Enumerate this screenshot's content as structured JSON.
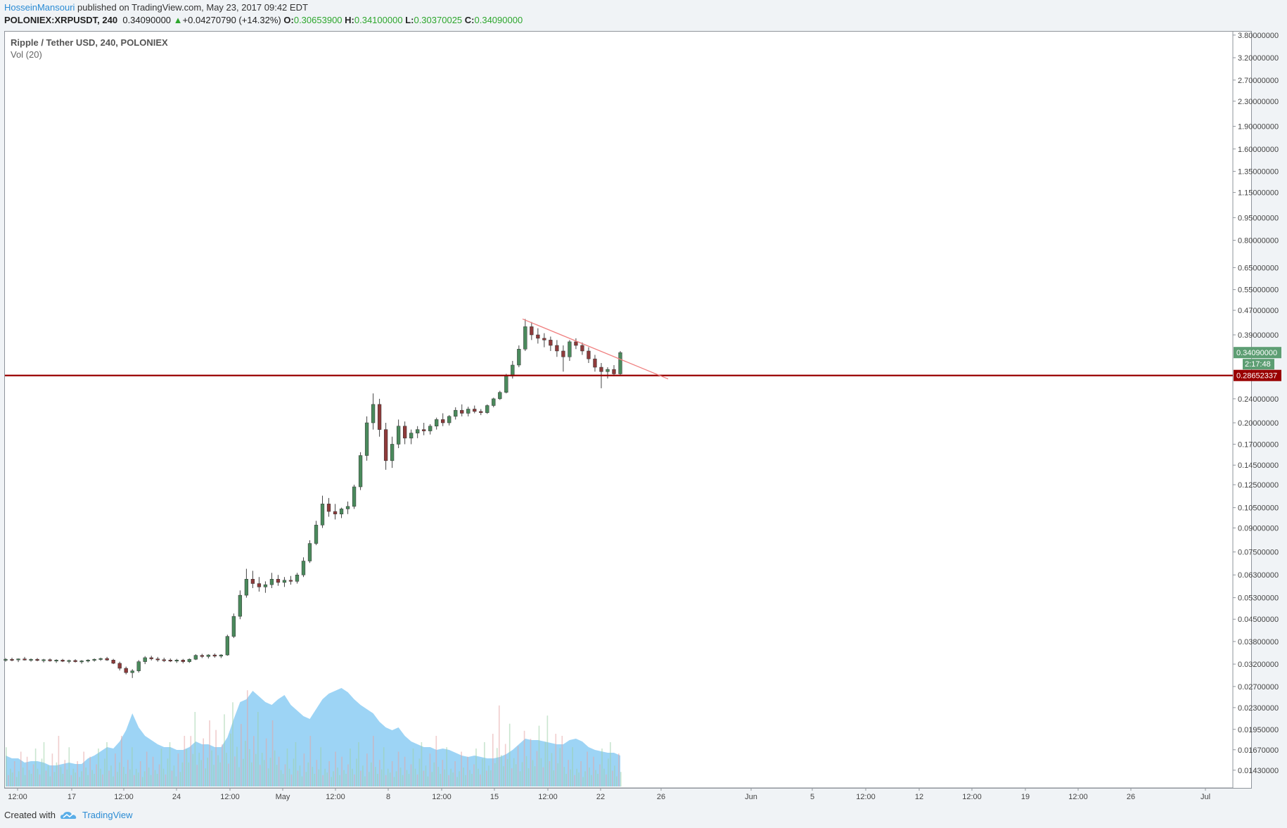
{
  "header": {
    "author": "HosseinMansouri",
    "published_text": " published on TradingView.com, May 23, 2017 09:42 EDT"
  },
  "symbol_bar": {
    "symbol": "POLONIEX:XRPUSDT, 240",
    "last": "0.34090000",
    "change": "+0.04270790 (+14.32%)",
    "o_label": "O:",
    "o": "0.30653900",
    "h_label": "H:",
    "h": "0.34100000",
    "l_label": "L:",
    "l": "0.30370025",
    "c_label": "C:",
    "c": "0.34090000"
  },
  "legend": {
    "title": "Ripple / Tether USD, 240, POLONIEX",
    "volume": "Vol (20)"
  },
  "footer": {
    "created_with": "Created with",
    "brand": "TradingView",
    "logo_icon": "tradingview-cloud-icon"
  },
  "chart_data": {
    "type": "candlestick",
    "y_scale": "log",
    "ylim": [
      0.0125,
      3.9
    ],
    "y_ticks": [
      "3.80000000",
      "3.20000000",
      "2.70000000",
      "2.30000000",
      "1.90000000",
      "1.60000000",
      "1.35000000",
      "1.15000000",
      "0.95000000",
      "0.80000000",
      "0.65000000",
      "0.55000000",
      "0.47000000",
      "0.39000000",
      "0.24000000",
      "0.20000000",
      "0.17000000",
      "0.14500000",
      "0.12500000",
      "0.10500000",
      "0.09000000",
      "0.07500000",
      "0.06300000",
      "0.05300000",
      "0.04500000",
      "0.03800000",
      "0.03200000",
      "0.02700000",
      "0.02300000",
      "0.01950000",
      "0.01670000",
      "0.01430000"
    ],
    "x_ticks": [
      "12:00",
      "17",
      "12:00",
      "24",
      "12:00",
      "May",
      "12:00",
      "8",
      "12:00",
      "15",
      "12:00",
      "22",
      "26",
      "Jun",
      "5",
      "12:00",
      "12",
      "12:00",
      "19",
      "12:00",
      "26",
      "Jul"
    ],
    "last_price_label": "0.34090000",
    "countdown": "2:17:48",
    "support_label": "0.28652337",
    "support_level": 0.28652337,
    "trendline": {
      "from_value": 0.44,
      "to_value": 0.279,
      "from_date": "May 17",
      "to_date": "May 25"
    },
    "colors": {
      "up": "#4a8a5c",
      "down": "#8e3a3a",
      "vol_area": "#7cc6f2",
      "support": "#990000",
      "trend": "#f08080",
      "price_badge": "#5d9e73"
    },
    "candles": [
      [
        0.033,
        0.0335,
        0.0326,
        0.0332
      ],
      [
        0.0332,
        0.0336,
        0.0327,
        0.0331
      ],
      [
        0.0331,
        0.0334,
        0.0325,
        0.0333
      ],
      [
        0.0333,
        0.0338,
        0.0329,
        0.033
      ],
      [
        0.033,
        0.0334,
        0.0326,
        0.0332
      ],
      [
        0.0332,
        0.0335,
        0.0327,
        0.0329
      ],
      [
        0.0329,
        0.0333,
        0.0324,
        0.0331
      ],
      [
        0.0331,
        0.0334,
        0.0326,
        0.0328
      ],
      [
        0.0328,
        0.0332,
        0.0323,
        0.033
      ],
      [
        0.033,
        0.0333,
        0.0325,
        0.0327
      ],
      [
        0.0327,
        0.0331,
        0.0322,
        0.0329
      ],
      [
        0.0329,
        0.0332,
        0.0324,
        0.0326
      ],
      [
        0.0326,
        0.033,
        0.0321,
        0.0328
      ],
      [
        0.0328,
        0.0332,
        0.0324,
        0.033
      ],
      [
        0.033,
        0.0334,
        0.0326,
        0.0332
      ],
      [
        0.0332,
        0.0336,
        0.0328,
        0.0334
      ],
      [
        0.0334,
        0.0338,
        0.0328,
        0.033
      ],
      [
        0.033,
        0.0333,
        0.032,
        0.0322
      ],
      [
        0.0322,
        0.0326,
        0.0305,
        0.031
      ],
      [
        0.031,
        0.0314,
        0.0296,
        0.03
      ],
      [
        0.03,
        0.0308,
        0.0288,
        0.0304
      ],
      [
        0.0304,
        0.033,
        0.03,
        0.0326
      ],
      [
        0.0326,
        0.034,
        0.032,
        0.0336
      ],
      [
        0.0336,
        0.0341,
        0.0329,
        0.0333
      ],
      [
        0.0333,
        0.0338,
        0.0326,
        0.0331
      ],
      [
        0.0331,
        0.0336,
        0.0325,
        0.033
      ],
      [
        0.033,
        0.0334,
        0.0325,
        0.0328
      ],
      [
        0.0328,
        0.0333,
        0.0323,
        0.033
      ],
      [
        0.033,
        0.0333,
        0.0322,
        0.0326
      ],
      [
        0.0326,
        0.0334,
        0.0323,
        0.0332
      ],
      [
        0.0332,
        0.0345,
        0.033,
        0.0342
      ],
      [
        0.0342,
        0.0346,
        0.0335,
        0.0339
      ],
      [
        0.0339,
        0.0345,
        0.0334,
        0.0343
      ],
      [
        0.0343,
        0.0347,
        0.0336,
        0.034
      ],
      [
        0.034,
        0.0345,
        0.0335,
        0.0343
      ],
      [
        0.0343,
        0.04,
        0.0341,
        0.0395
      ],
      [
        0.0395,
        0.047,
        0.039,
        0.046
      ],
      [
        0.046,
        0.056,
        0.045,
        0.054
      ],
      [
        0.054,
        0.066,
        0.053,
        0.061
      ],
      [
        0.061,
        0.065,
        0.057,
        0.059
      ],
      [
        0.059,
        0.062,
        0.0555,
        0.0575
      ],
      [
        0.0575,
        0.06,
        0.055,
        0.0585
      ],
      [
        0.0585,
        0.064,
        0.057,
        0.061
      ],
      [
        0.061,
        0.063,
        0.058,
        0.0595
      ],
      [
        0.0595,
        0.062,
        0.0575,
        0.0605
      ],
      [
        0.0605,
        0.0625,
        0.0585,
        0.06
      ],
      [
        0.06,
        0.064,
        0.059,
        0.063
      ],
      [
        0.063,
        0.072,
        0.062,
        0.07
      ],
      [
        0.07,
        0.082,
        0.069,
        0.08
      ],
      [
        0.08,
        0.095,
        0.079,
        0.092
      ],
      [
        0.092,
        0.115,
        0.09,
        0.108
      ],
      [
        0.108,
        0.113,
        0.098,
        0.102
      ],
      [
        0.102,
        0.108,
        0.096,
        0.1
      ],
      [
        0.1,
        0.105,
        0.097,
        0.104
      ],
      [
        0.104,
        0.11,
        0.1,
        0.106
      ],
      [
        0.106,
        0.125,
        0.104,
        0.123
      ],
      [
        0.123,
        0.16,
        0.12,
        0.156
      ],
      [
        0.156,
        0.21,
        0.15,
        0.2
      ],
      [
        0.2,
        0.25,
        0.19,
        0.23
      ],
      [
        0.23,
        0.24,
        0.18,
        0.19
      ],
      [
        0.19,
        0.2,
        0.14,
        0.15
      ],
      [
        0.15,
        0.18,
        0.142,
        0.17
      ],
      [
        0.17,
        0.205,
        0.165,
        0.195
      ],
      [
        0.195,
        0.202,
        0.17,
        0.178
      ],
      [
        0.178,
        0.19,
        0.17,
        0.185
      ],
      [
        0.185,
        0.195,
        0.178,
        0.19
      ],
      [
        0.19,
        0.2,
        0.182,
        0.188
      ],
      [
        0.188,
        0.198,
        0.183,
        0.195
      ],
      [
        0.195,
        0.208,
        0.19,
        0.205
      ],
      [
        0.205,
        0.215,
        0.195,
        0.2
      ],
      [
        0.2,
        0.212,
        0.196,
        0.21
      ],
      [
        0.21,
        0.225,
        0.205,
        0.22
      ],
      [
        0.22,
        0.23,
        0.21,
        0.215
      ],
      [
        0.215,
        0.226,
        0.21,
        0.222
      ],
      [
        0.222,
        0.228,
        0.215,
        0.218
      ],
      [
        0.218,
        0.222,
        0.212,
        0.216
      ],
      [
        0.216,
        0.23,
        0.214,
        0.228
      ],
      [
        0.228,
        0.242,
        0.225,
        0.24
      ],
      [
        0.24,
        0.255,
        0.238,
        0.252
      ],
      [
        0.252,
        0.29,
        0.25,
        0.285
      ],
      [
        0.285,
        0.32,
        0.28,
        0.31
      ],
      [
        0.31,
        0.36,
        0.305,
        0.35
      ],
      [
        0.35,
        0.44,
        0.345,
        0.415
      ],
      [
        0.415,
        0.43,
        0.375,
        0.39
      ],
      [
        0.39,
        0.41,
        0.365,
        0.38
      ],
      [
        0.38,
        0.395,
        0.355,
        0.375
      ],
      [
        0.375,
        0.385,
        0.345,
        0.36
      ],
      [
        0.36,
        0.375,
        0.33,
        0.345
      ],
      [
        0.345,
        0.36,
        0.295,
        0.33
      ],
      [
        0.33,
        0.375,
        0.32,
        0.37
      ],
      [
        0.37,
        0.38,
        0.35,
        0.36
      ],
      [
        0.36,
        0.368,
        0.335,
        0.345
      ],
      [
        0.345,
        0.355,
        0.315,
        0.325
      ],
      [
        0.325,
        0.335,
        0.295,
        0.305
      ],
      [
        0.305,
        0.315,
        0.26,
        0.295
      ],
      [
        0.295,
        0.305,
        0.28,
        0.3
      ],
      [
        0.3,
        0.31,
        0.285,
        0.29
      ],
      [
        0.29,
        0.345,
        0.288,
        0.3409
      ]
    ],
    "volumes": [
      22,
      20,
      20,
      17,
      18,
      18,
      17,
      15,
      15,
      16,
      17,
      16,
      16,
      20,
      22,
      25,
      28,
      27,
      32,
      40,
      52,
      42,
      36,
      33,
      30,
      28,
      28,
      26,
      26,
      28,
      32,
      30,
      30,
      28,
      28,
      35,
      48,
      60,
      62,
      68,
      64,
      60,
      58,
      62,
      65,
      58,
      54,
      50,
      48,
      55,
      62,
      66,
      68,
      70,
      67,
      62,
      58,
      55,
      52,
      46,
      42,
      40,
      42,
      36,
      32,
      30,
      28,
      28,
      26,
      27,
      26,
      24,
      22,
      21,
      22,
      21,
      20,
      20,
      21,
      23,
      26,
      30,
      34,
      33,
      33,
      32,
      31,
      30,
      30,
      33,
      34,
      32,
      28,
      26,
      25,
      24,
      24,
      22
    ]
  }
}
